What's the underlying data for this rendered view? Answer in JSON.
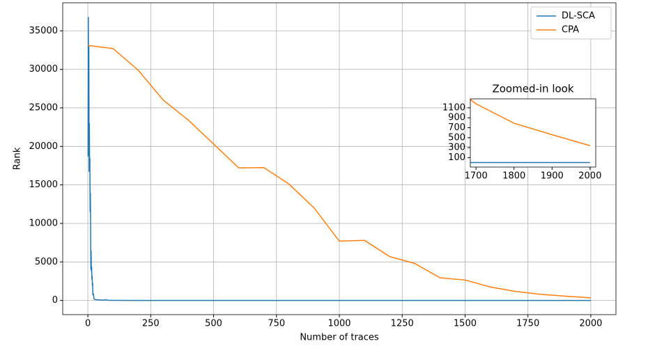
{
  "chart_data": {
    "type": "line",
    "xlabel": "Number of traces",
    "ylabel": "Rank",
    "xlim": [
      -100,
      2100
    ],
    "ylim": [
      -1840,
      38640
    ],
    "xticks": [
      0,
      250,
      500,
      750,
      1000,
      1250,
      1500,
      1750,
      2000
    ],
    "yticks": [
      0,
      5000,
      10000,
      15000,
      20000,
      25000,
      30000,
      35000
    ],
    "grid": true,
    "legend": "upper right",
    "series": [
      {
        "name": "DL-SCA",
        "color": "#1f77b4",
        "x": [
          1,
          2,
          3,
          4,
          5,
          6,
          7,
          8,
          9,
          10,
          11,
          12,
          13,
          14,
          15,
          16,
          17,
          18,
          19,
          20,
          22,
          24,
          26,
          30,
          40,
          50,
          60,
          70,
          80,
          100,
          200,
          500,
          1000,
          1500,
          2000
        ],
        "values": [
          18700,
          36800,
          25000,
          33000,
          16700,
          23000,
          17000,
          18500,
          11500,
          14000,
          9800,
          4000,
          6500,
          3800,
          4400,
          2700,
          3200,
          1900,
          2300,
          700,
          900,
          300,
          150,
          120,
          80,
          60,
          40,
          100,
          20,
          10,
          5,
          0,
          0,
          0,
          0
        ]
      },
      {
        "name": "CPA",
        "color": "#ff7f0e",
        "x": [
          0,
          100,
          200,
          300,
          400,
          500,
          600,
          700,
          800,
          900,
          1000,
          1100,
          1200,
          1300,
          1400,
          1500,
          1600,
          1700,
          1800,
          1900,
          2000
        ],
        "values": [
          33100,
          32700,
          29900,
          26000,
          23400,
          20300,
          17200,
          17250,
          15100,
          12000,
          7700,
          7800,
          5700,
          4800,
          2950,
          2650,
          1750,
          1180,
          790,
          560,
          340
        ]
      }
    ],
    "inset": {
      "title": "Zoomed-in look",
      "xlim": [
        1685,
        2015
      ],
      "ylim": [
        -90,
        1280
      ],
      "xticks": [
        1700,
        1800,
        1900,
        2000
      ],
      "yticks": [
        100,
        300,
        500,
        700,
        900,
        1100
      ]
    }
  }
}
